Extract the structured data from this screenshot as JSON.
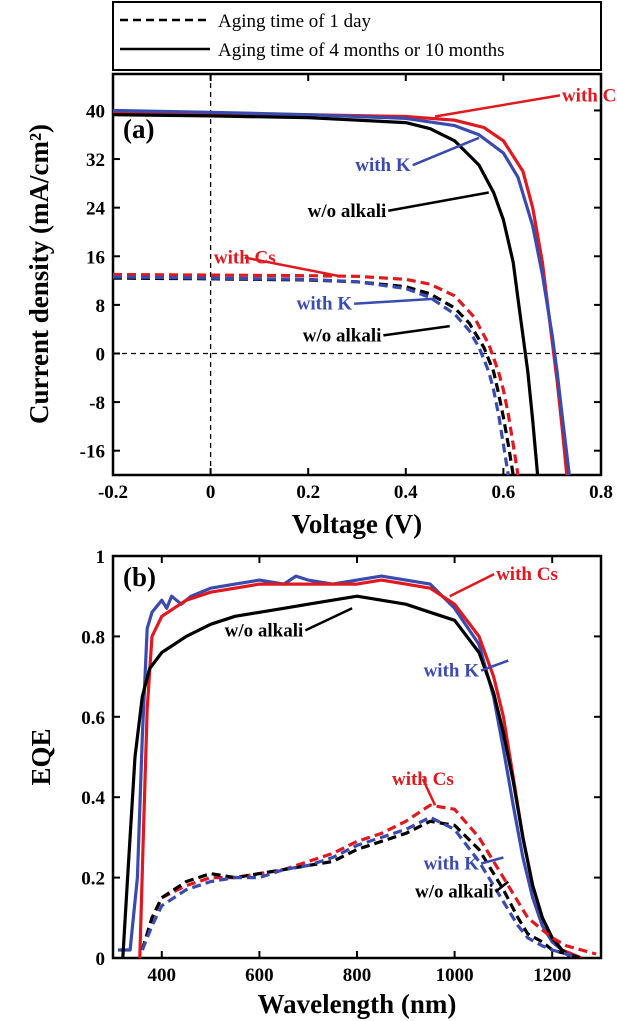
{
  "legend": {
    "entries": [
      {
        "label": "Aging time of 1 day",
        "style": "dashed"
      },
      {
        "label": "Aging time of 4 months or 10 months",
        "style": "solid"
      }
    ]
  },
  "colors": {
    "cs": "#e0191f",
    "k": "#3a4bb0",
    "none": "#000000"
  },
  "chart_data": [
    {
      "type": "line",
      "panel_label": "(a)",
      "xlabel": "Voltage (V)",
      "ylabel": "Current density (mA/cm²)",
      "xlim": [
        -0.2,
        0.8
      ],
      "ylim": [
        -20,
        46
      ],
      "xticks": [
        -0.2,
        0,
        0.2,
        0.4,
        0.6,
        0.8
      ],
      "xtick_labels": [
        "-0.2",
        "0",
        "0.2",
        "0.4",
        "0.6",
        "0.8"
      ],
      "yticks": [
        -16,
        -8,
        0,
        8,
        16,
        24,
        32,
        40
      ],
      "ytick_labels": [
        "-16",
        "-8",
        "0",
        "8",
        "16",
        "24",
        "32",
        "40"
      ],
      "reference_lines": [
        {
          "axis": "x",
          "value": 0
        },
        {
          "axis": "y",
          "value": 0
        }
      ],
      "series": [
        {
          "color_key": "cs",
          "dash": false,
          "x": [
            -0.2,
            0.0,
            0.2,
            0.4,
            0.5,
            0.56,
            0.6,
            0.64,
            0.66,
            0.68,
            0.69,
            0.7,
            0.71,
            0.72,
            0.73
          ],
          "y": [
            39.8,
            39.5,
            39.3,
            39.0,
            38.4,
            37.2,
            35.0,
            30.0,
            24.0,
            15.0,
            8.5,
            2.0,
            -4.5,
            -12.0,
            -20.0
          ]
        },
        {
          "color_key": "k",
          "dash": false,
          "x": [
            -0.2,
            0.0,
            0.2,
            0.4,
            0.5,
            0.55,
            0.6,
            0.63,
            0.66,
            0.68,
            0.7,
            0.71,
            0.72,
            0.735
          ],
          "y": [
            40.0,
            39.7,
            39.3,
            38.7,
            37.5,
            36.0,
            33.0,
            29.0,
            21.0,
            13.0,
            3.0,
            -3.0,
            -10.0,
            -20.0
          ]
        },
        {
          "color_key": "none",
          "dash": false,
          "x": [
            -0.2,
            0.0,
            0.2,
            0.4,
            0.45,
            0.5,
            0.55,
            0.58,
            0.6,
            0.62,
            0.63,
            0.64,
            0.65,
            0.66,
            0.67
          ],
          "y": [
            39.3,
            39.1,
            38.8,
            38.0,
            37.0,
            35.0,
            31.0,
            26.5,
            22.0,
            15.0,
            9.0,
            3.0,
            -3.0,
            -11.0,
            -20.0
          ]
        },
        {
          "color_key": "cs",
          "dash": true,
          "x": [
            -0.2,
            0.0,
            0.2,
            0.3,
            0.4,
            0.45,
            0.5,
            0.54,
            0.57,
            0.59,
            0.6,
            0.61,
            0.62,
            0.63
          ],
          "y": [
            13.0,
            12.9,
            12.8,
            12.7,
            12.2,
            11.4,
            9.5,
            6.0,
            1.5,
            -3.0,
            -6.0,
            -10.0,
            -15.0,
            -20.0
          ]
        },
        {
          "color_key": "none",
          "dash": true,
          "x": [
            -0.2,
            0.0,
            0.2,
            0.3,
            0.4,
            0.45,
            0.5,
            0.53,
            0.56,
            0.58,
            0.59,
            0.6,
            0.61,
            0.62
          ],
          "y": [
            12.4,
            12.3,
            12.1,
            11.8,
            11.0,
            9.8,
            7.5,
            5.0,
            1.0,
            -3.0,
            -6.5,
            -10.5,
            -15.0,
            -20.0
          ]
        },
        {
          "color_key": "k",
          "dash": true,
          "x": [
            -0.2,
            0.0,
            0.2,
            0.3,
            0.4,
            0.45,
            0.5,
            0.53,
            0.55,
            0.57,
            0.58,
            0.59,
            0.6,
            0.61
          ],
          "y": [
            12.6,
            12.4,
            12.2,
            11.8,
            10.7,
            9.2,
            6.5,
            3.8,
            1.0,
            -3.0,
            -6.0,
            -10.0,
            -15.0,
            -20.0
          ]
        }
      ],
      "annotations": [
        {
          "text": "with Cs",
          "color_key": "cs",
          "x": 0.72,
          "y": 41.5,
          "anchor": "start",
          "arrow_to": [
            0.46,
            39.0
          ]
        },
        {
          "text": "with K",
          "color_key": "k",
          "x": 0.41,
          "y": 30.0,
          "anchor": "end",
          "arrow_to": [
            0.55,
            35.5
          ]
        },
        {
          "text": "w/o alkali",
          "color_key": "none",
          "x": 0.36,
          "y": 22.5,
          "anchor": "end",
          "arrow_to": [
            0.57,
            26.5
          ]
        },
        {
          "text": "with Cs",
          "color_key": "cs",
          "x": 0.07,
          "y": 14.8,
          "anchor": "middle",
          "arrow_to": [
            0.26,
            12.8
          ]
        },
        {
          "text": "with K",
          "color_key": "k",
          "x": 0.29,
          "y": 7.2,
          "anchor": "end",
          "arrow_to": [
            0.46,
            9.0
          ]
        },
        {
          "text": "w/o alkali",
          "color_key": "none",
          "x": 0.35,
          "y": 2.0,
          "anchor": "end",
          "arrow_to": [
            0.49,
            4.5
          ]
        }
      ]
    },
    {
      "type": "line",
      "panel_label": "(b)",
      "xlabel": "Wavelength (nm)",
      "ylabel": "EQE",
      "xlim": [
        300,
        1300
      ],
      "ylim": [
        0,
        1
      ],
      "xticks": [
        400,
        600,
        800,
        1000,
        1200
      ],
      "xtick_labels": [
        "400",
        "600",
        "800",
        "1000",
        "1200"
      ],
      "yticks": [
        0,
        0.2,
        0.4,
        0.6,
        0.8,
        1
      ],
      "ytick_labels": [
        "0",
        "0.2",
        "0.4",
        "0.6",
        "0.8",
        "1"
      ],
      "series": [
        {
          "color_key": "k",
          "dash": false,
          "x": [
            310,
            335,
            350,
            360,
            370,
            380,
            400,
            410,
            420,
            440,
            460,
            500,
            550,
            600,
            650,
            675,
            700,
            750,
            800,
            850,
            900,
            950,
            1000,
            1050,
            1080,
            1100,
            1120,
            1140,
            1160,
            1180,
            1200,
            1220,
            1240,
            1255
          ],
          "y": [
            0.02,
            0.02,
            0.2,
            0.55,
            0.82,
            0.86,
            0.89,
            0.87,
            0.9,
            0.88,
            0.9,
            0.92,
            0.93,
            0.94,
            0.93,
            0.95,
            0.94,
            0.93,
            0.94,
            0.95,
            0.94,
            0.93,
            0.87,
            0.78,
            0.65,
            0.52,
            0.38,
            0.25,
            0.15,
            0.08,
            0.04,
            0.02,
            0.01,
            0.0
          ]
        },
        {
          "color_key": "cs",
          "dash": false,
          "x": [
            355,
            362,
            370,
            380,
            400,
            450,
            500,
            600,
            700,
            800,
            850,
            900,
            950,
            1000,
            1050,
            1080,
            1100,
            1120,
            1140,
            1160,
            1180,
            1200,
            1220,
            1240,
            1260
          ],
          "y": [
            0.0,
            0.3,
            0.62,
            0.8,
            0.85,
            0.89,
            0.91,
            0.93,
            0.93,
            0.93,
            0.94,
            0.93,
            0.92,
            0.88,
            0.8,
            0.7,
            0.6,
            0.45,
            0.3,
            0.18,
            0.1,
            0.05,
            0.02,
            0.01,
            0.0
          ]
        },
        {
          "color_key": "none",
          "dash": false,
          "x": [
            320,
            330,
            345,
            360,
            375,
            400,
            450,
            500,
            550,
            600,
            650,
            700,
            750,
            800,
            850,
            900,
            950,
            1000,
            1050,
            1080,
            1100,
            1120,
            1140,
            1160,
            1180,
            1200,
            1220,
            1240
          ],
          "y": [
            0.0,
            0.2,
            0.5,
            0.65,
            0.72,
            0.76,
            0.8,
            0.83,
            0.85,
            0.86,
            0.87,
            0.88,
            0.89,
            0.9,
            0.89,
            0.88,
            0.86,
            0.84,
            0.76,
            0.66,
            0.56,
            0.44,
            0.3,
            0.18,
            0.1,
            0.05,
            0.02,
            0.0
          ]
        },
        {
          "color_key": "cs",
          "dash": true,
          "x": [
            360,
            380,
            400,
            450,
            500,
            550,
            600,
            650,
            700,
            750,
            800,
            850,
            900,
            950,
            1000,
            1050,
            1100,
            1130,
            1150,
            1180,
            1200,
            1230,
            1260,
            1290
          ],
          "y": [
            0.02,
            0.1,
            0.15,
            0.18,
            0.2,
            0.2,
            0.21,
            0.22,
            0.24,
            0.26,
            0.29,
            0.31,
            0.34,
            0.38,
            0.37,
            0.3,
            0.2,
            0.14,
            0.1,
            0.07,
            0.05,
            0.03,
            0.02,
            0.01
          ]
        },
        {
          "color_key": "none",
          "dash": true,
          "x": [
            360,
            380,
            400,
            450,
            500,
            550,
            600,
            650,
            700,
            750,
            800,
            850,
            900,
            950,
            1000,
            1050,
            1100,
            1130,
            1150,
            1180,
            1200,
            1230,
            1260
          ],
          "y": [
            0.02,
            0.1,
            0.15,
            0.19,
            0.21,
            0.2,
            0.21,
            0.22,
            0.23,
            0.24,
            0.27,
            0.29,
            0.31,
            0.34,
            0.33,
            0.27,
            0.17,
            0.1,
            0.06,
            0.04,
            0.02,
            0.01,
            0.0
          ]
        },
        {
          "color_key": "k",
          "dash": true,
          "x": [
            360,
            380,
            400,
            450,
            500,
            550,
            600,
            650,
            700,
            750,
            800,
            850,
            900,
            950,
            1000,
            1050,
            1100,
            1130,
            1150,
            1180,
            1200,
            1230,
            1250
          ],
          "y": [
            0.02,
            0.08,
            0.13,
            0.17,
            0.19,
            0.2,
            0.2,
            0.22,
            0.23,
            0.25,
            0.28,
            0.3,
            0.32,
            0.35,
            0.32,
            0.24,
            0.14,
            0.08,
            0.05,
            0.03,
            0.02,
            0.01,
            0.0
          ]
        }
      ],
      "annotations": [
        {
          "text": "with Cs",
          "color_key": "cs",
          "x": 1085,
          "y": 0.94,
          "anchor": "start",
          "arrow_to": [
            990,
            0.9
          ]
        },
        {
          "text": "w/o alkali",
          "color_key": "none",
          "x": 690,
          "y": 0.8,
          "anchor": "end",
          "arrow_to": [
            790,
            0.87
          ]
        },
        {
          "text": "with K",
          "color_key": "k",
          "x": 1050,
          "y": 0.7,
          "anchor": "end",
          "arrow_to": [
            1110,
            0.74
          ]
        },
        {
          "text": "with Cs",
          "color_key": "cs",
          "x": 935,
          "y": 0.43,
          "anchor": "middle",
          "arrow_to": [
            960,
            0.38
          ]
        },
        {
          "text": "with K",
          "color_key": "k",
          "x": 1050,
          "y": 0.22,
          "anchor": "end",
          "arrow_to": [
            1100,
            0.25
          ]
        },
        {
          "text": "w/o alkali",
          "color_key": "none",
          "x": 1080,
          "y": 0.15,
          "anchor": "end",
          "arrow_to": [
            1110,
            0.19
          ]
        }
      ]
    }
  ]
}
